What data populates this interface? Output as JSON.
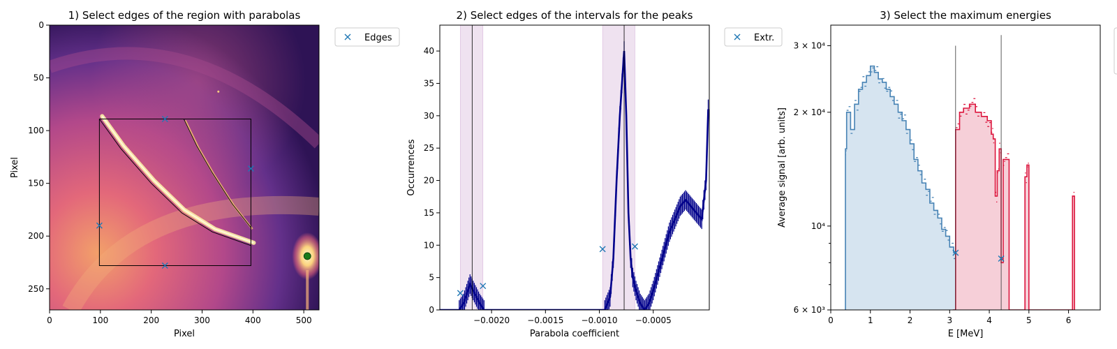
{
  "colors": {
    "blue_marker": "#1f77b4",
    "navy_hist": "#00008b",
    "steel_blue": "#4682b4",
    "crimson": "#dc143c",
    "purple_span": "#e8d5ea",
    "image_dark": "#2a0f52",
    "image_mid": "#d8587a",
    "image_bright": "#fcefa6",
    "green_dot": "#1a7a1a"
  },
  "chart_data": [
    {
      "type": "heatmap",
      "title": "1) Select edges of the region with parabolas",
      "xlabel": "Pixel",
      "ylabel": "Pixel",
      "xlim": [
        0,
        530
      ],
      "ylim": [
        270,
        0
      ],
      "xticks": [
        0,
        100,
        200,
        300,
        400,
        500
      ],
      "yticks": [
        0,
        50,
        100,
        150,
        200,
        250
      ],
      "colormap": "magma",
      "legend": {
        "entries": [
          "Edges"
        ],
        "placement": "outside-top-right"
      },
      "rectangle": {
        "x0": 98,
        "x1": 396,
        "y0": 89,
        "y1": 228
      },
      "edge_markers": [
        {
          "x": 227,
          "y": 89
        },
        {
          "x": 396,
          "y": 136
        },
        {
          "x": 98,
          "y": 190
        },
        {
          "x": 227,
          "y": 228
        }
      ],
      "parabola_curves": [
        [
          [
            98,
            89
          ],
          [
            140,
            117
          ],
          [
            200,
            150
          ],
          [
            260,
            178
          ],
          [
            320,
            196
          ],
          [
            396,
            209
          ]
        ],
        [
          [
            264,
            89
          ],
          [
            290,
            115
          ],
          [
            320,
            140
          ],
          [
            360,
            170
          ],
          [
            396,
            192
          ]
        ]
      ],
      "green_marker": {
        "x": 507,
        "y": 219
      }
    },
    {
      "type": "line",
      "title": "2) Select edges of the intervals for the peaks",
      "xlabel": "Parabola coefficient",
      "ylabel": "Occurrences",
      "xlim": [
        -0.00248,
        2e-05
      ],
      "ylim": [
        0,
        44
      ],
      "xticks": [
        -0.002,
        -0.0015,
        -0.001,
        -0.0005
      ],
      "xtick_labels": [
        "−0.0020",
        "−0.0015",
        "−0.0010",
        "−0.0005"
      ],
      "yticks": [
        0,
        5,
        10,
        15,
        20,
        25,
        30,
        35,
        40
      ],
      "legend": {
        "entries": [
          "Extr."
        ],
        "placement": "outside-top-right"
      },
      "spans": [
        [
          -0.00229,
          -0.00208
        ],
        [
          -0.00097,
          -0.00067
        ]
      ],
      "vlines": [
        -0.00218,
        -0.00077
      ],
      "markers": [
        {
          "x": -0.00229,
          "y": 2.6
        },
        {
          "x": -0.00208,
          "y": 3.7
        },
        {
          "x": -0.00097,
          "y": 9.4
        },
        {
          "x": -0.00067,
          "y": 9.8
        }
      ],
      "series": [
        {
          "x": [
            -0.00248,
            -0.0023,
            -0.00226,
            -0.00223,
            -0.0022,
            -0.00217,
            -0.00214,
            -0.00211,
            -0.00207,
            -0.002,
            -0.0012,
            -0.00095,
            -0.0009,
            -0.00087,
            -0.00084,
            -0.00081,
            -0.00079,
            -0.00077,
            -0.00075,
            -0.00073,
            -0.00071,
            -0.00069,
            -0.00066,
            -0.00062,
            -0.00058,
            -0.00054,
            -0.0005,
            -0.00045,
            -0.0004,
            -0.00035,
            -0.0003,
            -0.00025,
            -0.0002,
            -0.00015,
            -0.0001,
            -5e-05,
            -1e-05,
            1e-05
          ],
          "y": [
            0,
            0,
            1,
            2.5,
            4,
            3,
            2,
            1,
            0,
            0,
            0,
            0,
            2,
            8,
            20,
            30,
            35,
            40,
            30,
            15,
            8,
            5,
            3,
            1,
            0,
            1,
            3,
            6,
            9,
            12,
            14,
            16,
            17,
            16,
            15,
            14,
            20,
            31
          ]
        }
      ]
    },
    {
      "type": "area",
      "title": "3) Select the maximum energies",
      "xlabel": "E [MeV]",
      "ylabel": "Average signal [arb. units]",
      "yscale": "log",
      "xlim": [
        0,
        6.8
      ],
      "ylim": [
        6000,
        34000
      ],
      "xticks": [
        0,
        1,
        2,
        3,
        4,
        5,
        6
      ],
      "yticks": [
        6000,
        10000,
        20000,
        30000
      ],
      "ytick_labels": [
        "6 × 10³",
        "10⁴",
        "2 × 10⁴",
        "3 × 10⁴"
      ],
      "vlines": [
        {
          "x": 3.15,
          "top": 30000
        },
        {
          "x": 4.3,
          "top": 32000
        }
      ],
      "markers": [
        {
          "x": 3.15,
          "y": 8500
        },
        {
          "x": 4.3,
          "y": 8200
        }
      ],
      "series": [
        {
          "color": "steel_blue",
          "x": [
            0.37,
            0.4,
            0.5,
            0.6,
            0.7,
            0.8,
            0.9,
            1.0,
            1.1,
            1.2,
            1.3,
            1.4,
            1.5,
            1.6,
            1.7,
            1.8,
            1.9,
            2.0,
            2.1,
            2.2,
            2.3,
            2.4,
            2.5,
            2.6,
            2.7,
            2.8,
            2.9,
            3.0,
            3.1,
            3.2,
            3.26
          ],
          "y": [
            16000,
            20000,
            18000,
            21000,
            23000,
            24000,
            25000,
            26500,
            25500,
            24500,
            24000,
            23000,
            22000,
            21000,
            20000,
            19000,
            18000,
            16500,
            15000,
            14000,
            13000,
            12500,
            11500,
            11000,
            10500,
            9800,
            9400,
            8800,
            8500,
            8300,
            8300
          ]
        },
        {
          "color": "crimson",
          "x": [
            3.08,
            3.15,
            3.25,
            3.35,
            3.5,
            3.65,
            3.8,
            3.95,
            4.05,
            4.1,
            4.15,
            4.2,
            4.25,
            4.3,
            4.35,
            4.4,
            4.5,
            4.9,
            4.95,
            5.0,
            6.1,
            6.15
          ],
          "y": [
            6000,
            18000,
            20000,
            20500,
            21000,
            20000,
            19500,
            19000,
            17500,
            17000,
            12000,
            14000,
            16000,
            8000,
            15000,
            15000,
            6000,
            13500,
            14500,
            6000,
            12000,
            12000
          ]
        }
      ]
    }
  ]
}
